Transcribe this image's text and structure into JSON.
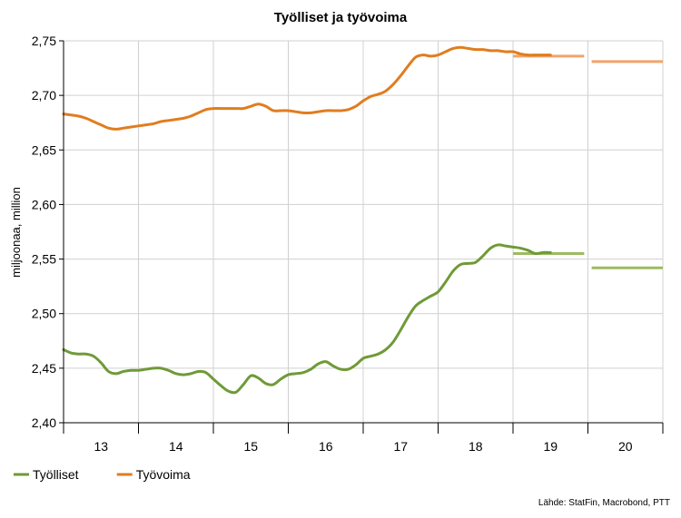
{
  "chart_data": {
    "type": "line",
    "title": "Työlliset ja työvoima",
    "ylabel": "miljoonaa, million",
    "xlabel": "",
    "ylim": [
      2.4,
      2.75
    ],
    "xlim": [
      2013,
      2021
    ],
    "y_ticks": [
      2.4,
      2.45,
      2.5,
      2.55,
      2.6,
      2.65,
      2.7,
      2.75
    ],
    "y_tick_labels": [
      "2,40",
      "2,45",
      "2,50",
      "2,55",
      "2,60",
      "2,65",
      "2,70",
      "2,75"
    ],
    "x_year_labels": [
      "13",
      "14",
      "15",
      "16",
      "17",
      "18",
      "19",
      "20"
    ],
    "grid": true,
    "legend_position": "bottom-left",
    "source": "Lähde: StatFin, Macrobond, PTT",
    "series": [
      {
        "name": "Työlliset",
        "color": "#6f9a37",
        "x": [
          2013.0,
          2013.1,
          2013.2,
          2013.3,
          2013.4,
          2013.5,
          2013.6,
          2013.7,
          2013.8,
          2013.9,
          2014.0,
          2014.1,
          2014.2,
          2014.3,
          2014.4,
          2014.5,
          2014.6,
          2014.7,
          2014.8,
          2014.9,
          2015.0,
          2015.1,
          2015.2,
          2015.3,
          2015.4,
          2015.5,
          2015.6,
          2015.7,
          2015.8,
          2015.9,
          2016.0,
          2016.1,
          2016.2,
          2016.3,
          2016.4,
          2016.5,
          2016.6,
          2016.7,
          2016.8,
          2016.9,
          2017.0,
          2017.1,
          2017.2,
          2017.3,
          2017.4,
          2017.5,
          2017.6,
          2017.7,
          2017.8,
          2017.9,
          2018.0,
          2018.1,
          2018.2,
          2018.3,
          2018.4,
          2018.5,
          2018.6,
          2018.7,
          2018.8,
          2018.9,
          2019.0,
          2019.1,
          2019.2,
          2019.3,
          2019.4,
          2019.5
        ],
        "values": [
          2.467,
          2.464,
          2.463,
          2.463,
          2.461,
          2.455,
          2.447,
          2.445,
          2.447,
          2.448,
          2.448,
          2.449,
          2.45,
          2.45,
          2.448,
          2.445,
          2.444,
          2.445,
          2.447,
          2.446,
          2.44,
          2.434,
          2.429,
          2.428,
          2.435,
          2.443,
          2.441,
          2.436,
          2.435,
          2.44,
          2.444,
          2.445,
          2.446,
          2.449,
          2.454,
          2.456,
          2.452,
          2.449,
          2.449,
          2.453,
          2.459,
          2.461,
          2.463,
          2.467,
          2.474,
          2.485,
          2.497,
          2.507,
          2.512,
          2.516,
          2.52,
          2.529,
          2.539,
          2.545,
          2.546,
          2.547,
          2.553,
          2.56,
          2.563,
          2.562,
          2.561,
          2.56,
          2.558,
          2.555,
          2.556,
          2.556
        ]
      },
      {
        "name": "Työvoima",
        "color": "#e07d1f",
        "x": [
          2013.0,
          2013.1,
          2013.2,
          2013.3,
          2013.4,
          2013.5,
          2013.6,
          2013.7,
          2013.8,
          2013.9,
          2014.0,
          2014.1,
          2014.2,
          2014.3,
          2014.4,
          2014.5,
          2014.6,
          2014.7,
          2014.8,
          2014.9,
          2015.0,
          2015.1,
          2015.2,
          2015.3,
          2015.4,
          2015.5,
          2015.6,
          2015.7,
          2015.8,
          2015.9,
          2016.0,
          2016.1,
          2016.2,
          2016.3,
          2016.4,
          2016.5,
          2016.6,
          2016.7,
          2016.8,
          2016.9,
          2017.0,
          2017.1,
          2017.2,
          2017.3,
          2017.4,
          2017.5,
          2017.6,
          2017.7,
          2017.8,
          2017.9,
          2018.0,
          2018.1,
          2018.2,
          2018.3,
          2018.4,
          2018.5,
          2018.6,
          2018.7,
          2018.8,
          2018.9,
          2019.0,
          2019.1,
          2019.2,
          2019.3,
          2019.4,
          2019.5
        ],
        "values": [
          2.683,
          2.682,
          2.681,
          2.679,
          2.676,
          2.673,
          2.67,
          2.669,
          2.67,
          2.671,
          2.672,
          2.673,
          2.674,
          2.676,
          2.677,
          2.678,
          2.679,
          2.681,
          2.684,
          2.687,
          2.688,
          2.688,
          2.688,
          2.688,
          2.688,
          2.69,
          2.692,
          2.69,
          2.686,
          2.686,
          2.686,
          2.685,
          2.684,
          2.684,
          2.685,
          2.686,
          2.686,
          2.686,
          2.687,
          2.69,
          2.695,
          2.699,
          2.701,
          2.704,
          2.71,
          2.718,
          2.727,
          2.735,
          2.737,
          2.736,
          2.737,
          2.74,
          2.743,
          2.744,
          2.743,
          2.742,
          2.742,
          2.741,
          2.741,
          2.74,
          2.74,
          2.738,
          2.737,
          2.737,
          2.737,
          2.737
        ]
      }
    ],
    "forecasts": [
      {
        "series": "Työlliset",
        "color": "#9dbb61",
        "x": [
          2019.0,
          2019.95
        ],
        "value": 2.555
      },
      {
        "series": "Työlliset",
        "color": "#9dbb61",
        "x": [
          2020.05,
          2021.0
        ],
        "value": 2.542
      },
      {
        "series": "Työvoima",
        "color": "#f0a46a",
        "x": [
          2019.0,
          2019.95
        ],
        "value": 2.736
      },
      {
        "series": "Työvoima",
        "color": "#f0a46a",
        "x": [
          2020.05,
          2021.0
        ],
        "value": 2.731
      }
    ]
  }
}
